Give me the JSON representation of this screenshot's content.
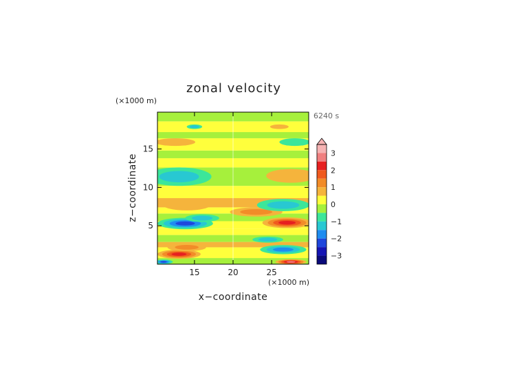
{
  "chart_data": {
    "type": "heatmap",
    "title": "zonal velocity",
    "xlabel": "x−coordinate",
    "ylabel": "z−coordinate",
    "x_unit": "(×1000 m)",
    "y_unit": "(×1000 m)",
    "time_label": "6240 s",
    "xlim": [
      10.2,
      29.8
    ],
    "ylim": [
      0,
      19.8
    ],
    "x_ticks": [
      {
        "value": 15,
        "label": "15"
      },
      {
        "value": 20,
        "label": "20"
      },
      {
        "value": 25,
        "label": "25"
      }
    ],
    "y_ticks": [
      {
        "value": 5,
        "label": "5"
      },
      {
        "value": 10,
        "label": "10"
      },
      {
        "value": 15,
        "label": "15"
      }
    ],
    "colorbar": {
      "range": [
        -3.5,
        3.5
      ],
      "extend": "max",
      "ticks": [
        {
          "value": 3,
          "label": "3"
        },
        {
          "value": 2,
          "label": "2"
        },
        {
          "value": 1,
          "label": "1"
        },
        {
          "value": 0,
          "label": "0"
        },
        {
          "value": -1,
          "label": "−1"
        },
        {
          "value": -2,
          "label": "−2"
        },
        {
          "value": -3,
          "label": "−3"
        }
      ],
      "levels": [
        {
          "min": 3.0,
          "max": 3.5,
          "color": "#f6b4b4"
        },
        {
          "min": 2.5,
          "max": 3.0,
          "color": "#f08080"
        },
        {
          "min": 2.0,
          "max": 2.5,
          "color": "#e62020"
        },
        {
          "min": 1.5,
          "max": 2.0,
          "color": "#f05a1e"
        },
        {
          "min": 1.0,
          "max": 1.5,
          "color": "#f28c28"
        },
        {
          "min": 0.5,
          "max": 1.0,
          "color": "#f5b43c"
        },
        {
          "min": 0.0,
          "max": 0.5,
          "color": "#ffff3c"
        },
        {
          "min": -0.5,
          "max": 0.0,
          "color": "#a6f03c"
        },
        {
          "min": -1.0,
          "max": -0.5,
          "color": "#3ce69a"
        },
        {
          "min": -1.5,
          "max": -1.0,
          "color": "#28c8d2"
        },
        {
          "min": -2.0,
          "max": -1.5,
          "color": "#1e8cf0"
        },
        {
          "min": -2.5,
          "max": -2.0,
          "color": "#1e46dc"
        },
        {
          "min": -3.0,
          "max": -2.5,
          "color": "#1414b4"
        },
        {
          "min": -3.5,
          "max": -3.0,
          "color": "#0a0a7a"
        }
      ]
    },
    "bands": [
      {
        "z0": 0.0,
        "z1": 0.8,
        "value": -0.4
      },
      {
        "z0": 0.8,
        "z1": 2.2,
        "value": 0.3
      },
      {
        "z0": 2.2,
        "z1": 2.9,
        "value": 0.6
      },
      {
        "z0": 2.9,
        "z1": 3.8,
        "value": -0.3
      },
      {
        "z0": 3.8,
        "z1": 4.6,
        "value": 0.4
      },
      {
        "z0": 4.6,
        "z1": 5.6,
        "value": 0.2
      },
      {
        "z0": 5.6,
        "z1": 6.6,
        "value": -0.4
      },
      {
        "z0": 6.6,
        "z1": 7.4,
        "value": 0.1
      },
      {
        "z0": 7.4,
        "z1": 8.6,
        "value": 0.7
      },
      {
        "z0": 8.6,
        "z1": 10.2,
        "value": 0.2
      },
      {
        "z0": 10.2,
        "z1": 12.6,
        "value": -0.2
      },
      {
        "z0": 12.6,
        "z1": 13.8,
        "value": 0.3
      },
      {
        "z0": 13.8,
        "z1": 14.8,
        "value": -0.3
      },
      {
        "z0": 14.8,
        "z1": 16.4,
        "value": 0.2
      },
      {
        "z0": 16.4,
        "z1": 17.2,
        "value": -0.3
      },
      {
        "z0": 17.2,
        "z1": 18.6,
        "value": 0.2
      },
      {
        "z0": 18.6,
        "z1": 19.8,
        "value": -0.3
      }
    ],
    "features": [
      {
        "x": 13.0,
        "z": 1.3,
        "rx": 2.8,
        "rz": 0.6,
        "value": 2.2
      },
      {
        "x": 27.5,
        "z": 0.3,
        "rx": 2.0,
        "rz": 0.35,
        "value": 2.6
      },
      {
        "x": 11.0,
        "z": 0.3,
        "rx": 1.2,
        "rz": 0.3,
        "value": -2.2
      },
      {
        "x": 26.5,
        "z": 1.9,
        "rx": 3.0,
        "rz": 0.6,
        "value": -1.8
      },
      {
        "x": 14.0,
        "z": 2.2,
        "rx": 2.5,
        "rz": 0.5,
        "value": 1.4
      },
      {
        "x": 24.5,
        "z": 3.2,
        "rx": 2.0,
        "rz": 0.4,
        "value": -1.0
      },
      {
        "x": 13.8,
        "z": 5.3,
        "rx": 3.6,
        "rz": 0.75,
        "value": -2.2
      },
      {
        "x": 27.0,
        "z": 5.4,
        "rx": 3.2,
        "rz": 0.7,
        "value": 2.2
      },
      {
        "x": 16.0,
        "z": 6.0,
        "rx": 2.2,
        "rz": 0.5,
        "value": -1.1
      },
      {
        "x": 23.0,
        "z": 6.8,
        "rx": 3.4,
        "rz": 0.6,
        "value": 1.0
      },
      {
        "x": 26.5,
        "z": 7.7,
        "rx": 3.4,
        "rz": 0.8,
        "value": -1.3
      },
      {
        "x": 14.0,
        "z": 7.8,
        "rx": 3.2,
        "rz": 0.8,
        "value": 0.9
      },
      {
        "x": 13.0,
        "z": 11.4,
        "rx": 4.2,
        "rz": 1.2,
        "value": -1.0
      },
      {
        "x": 27.5,
        "z": 11.5,
        "rx": 3.2,
        "rz": 0.9,
        "value": 0.9
      },
      {
        "x": 12.5,
        "z": 15.9,
        "rx": 2.6,
        "rz": 0.5,
        "value": 0.9
      },
      {
        "x": 28.0,
        "z": 15.9,
        "rx": 2.0,
        "rz": 0.5,
        "value": -0.8
      },
      {
        "x": 15.0,
        "z": 17.9,
        "rx": 1.0,
        "rz": 0.3,
        "value": -1.2
      },
      {
        "x": 26.0,
        "z": 17.9,
        "rx": 1.2,
        "rz": 0.3,
        "value": 0.9
      }
    ]
  }
}
